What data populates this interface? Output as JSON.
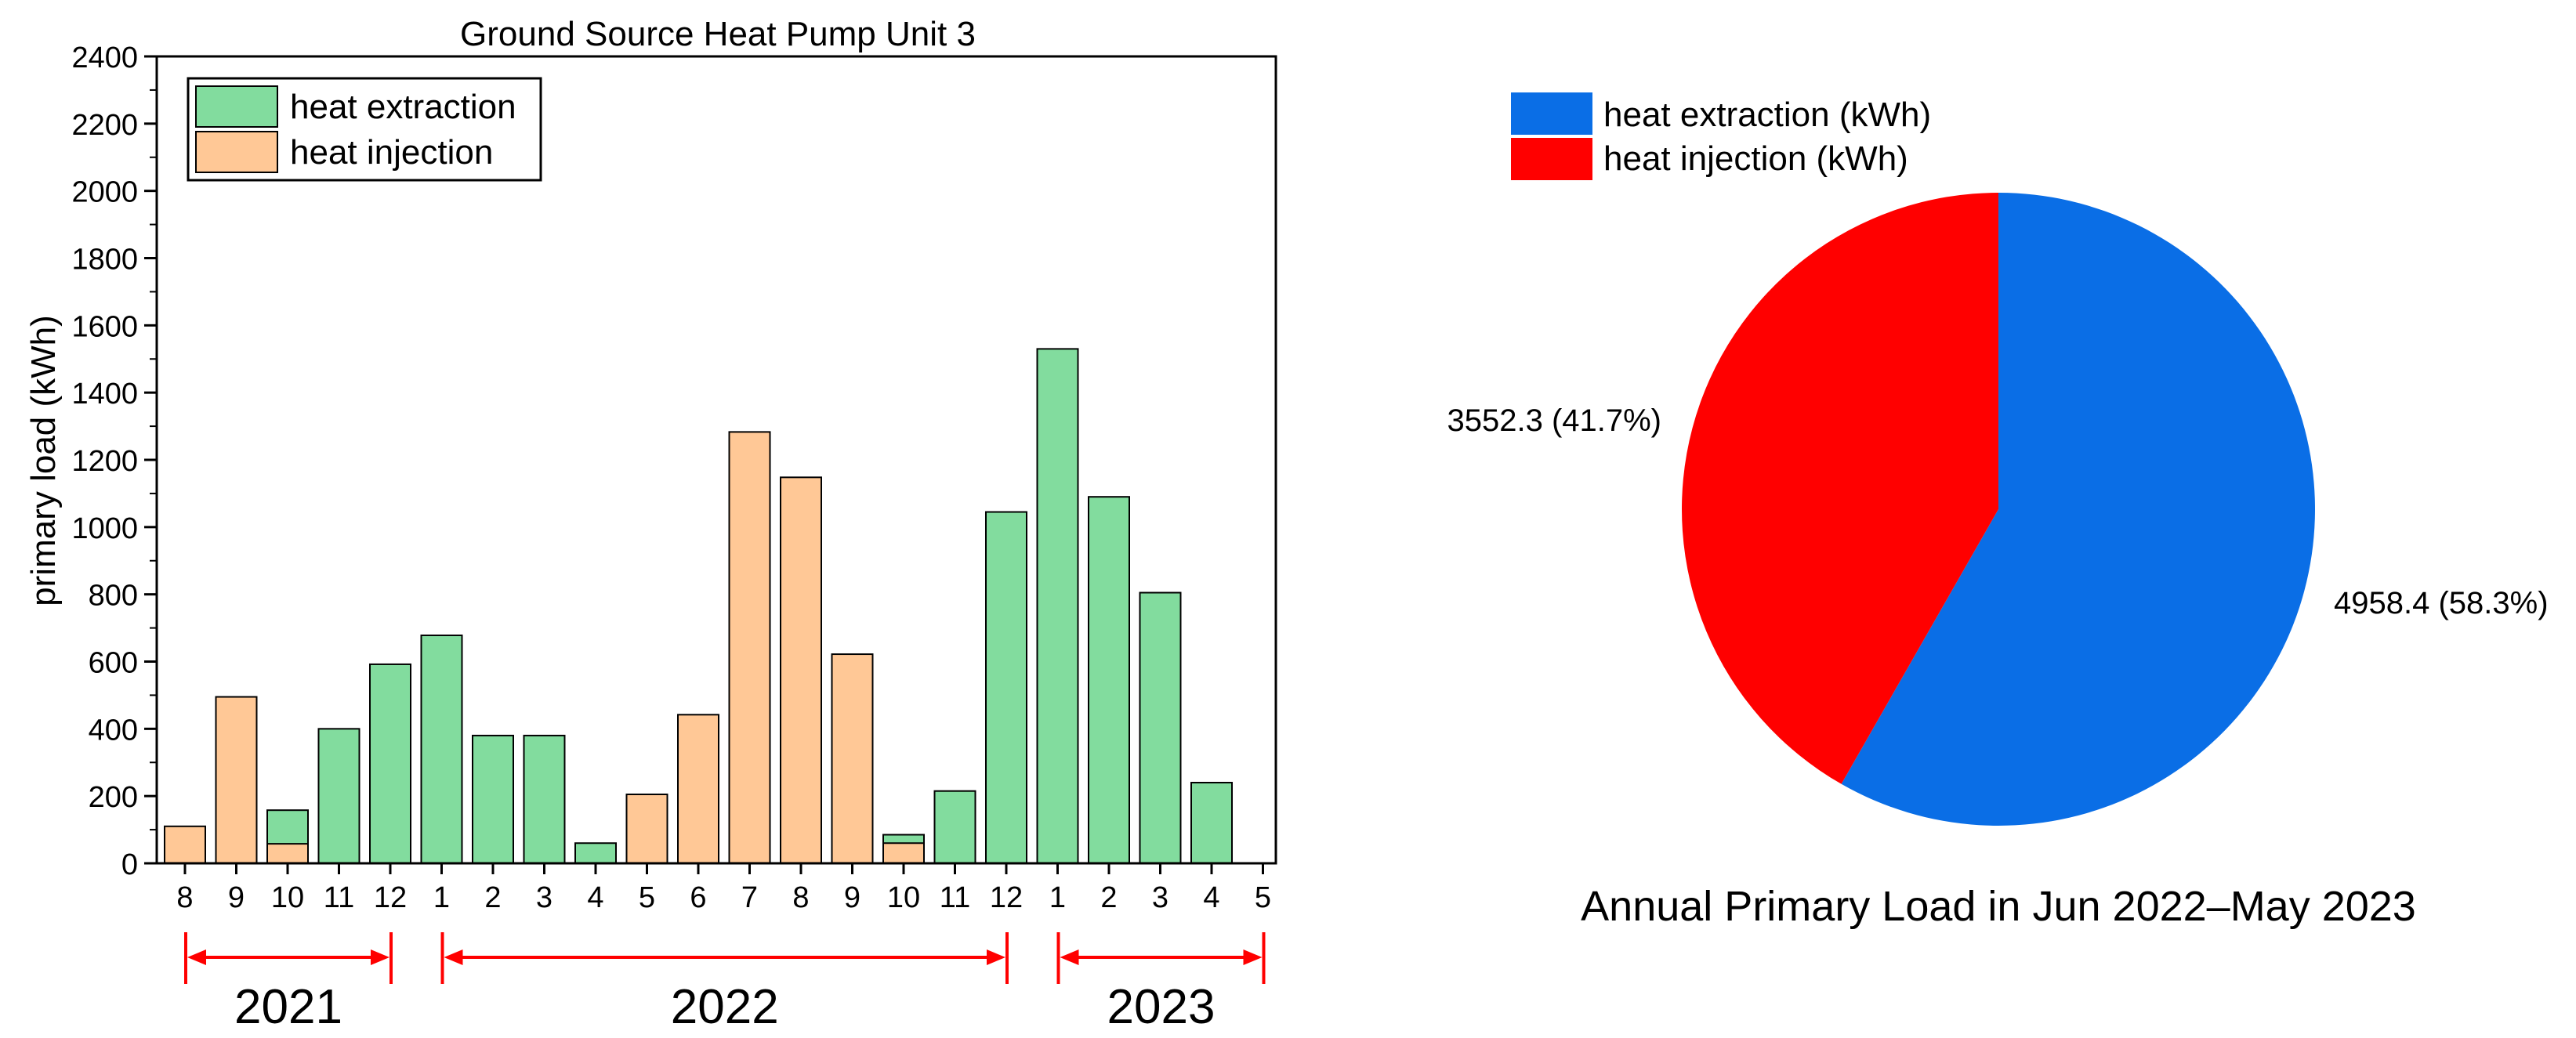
{
  "chart_data": [
    {
      "type": "bar",
      "title": "Ground Source Heat Pump Unit 3",
      "xlabel": "",
      "ylabel": "primary load (kWh)",
      "ylim": [
        0,
        2400
      ],
      "yticks": [
        "0",
        "200",
        "400",
        "600",
        "800",
        "1000",
        "1200",
        "1400",
        "1600",
        "1800",
        "2000",
        "2200",
        "2400"
      ],
      "categories": [
        "8",
        "9",
        "10",
        "11",
        "12",
        "1",
        "2",
        "3",
        "4",
        "5",
        "6",
        "7",
        "8",
        "9",
        "10",
        "11",
        "12",
        "1",
        "2",
        "3",
        "4",
        "5"
      ],
      "series": [
        {
          "name": "heat extraction",
          "color": "#82dc9e",
          "values": [
            0,
            0,
            158,
            400,
            592,
            678,
            380,
            380,
            60,
            0,
            0,
            0,
            0,
            0,
            85,
            215,
            1045,
            1530,
            1090,
            805,
            240,
            0
          ]
        },
        {
          "name": "heat injection",
          "color": "#ffc896",
          "values": [
            110,
            495,
            58,
            0,
            0,
            0,
            0,
            0,
            0,
            205,
            442,
            1283,
            1148,
            622,
            60,
            0,
            0,
            0,
            0,
            0,
            0,
            0
          ]
        }
      ],
      "legend": [
        "heat extraction",
        "heat injection"
      ],
      "legend_position": "top-left",
      "year_spans": [
        {
          "label": "2021",
          "from_index": 0,
          "to_index": 4
        },
        {
          "label": "2022",
          "from_index": 5,
          "to_index": 16
        },
        {
          "label": "2023",
          "from_index": 17,
          "to_index": 21
        }
      ],
      "arrow_color": "#ff0000"
    },
    {
      "type": "pie",
      "title": "Annual Primary Load in Jun 2022–May 2023",
      "slices": [
        {
          "name": "heat extraction (kWh)",
          "value": 4958.4,
          "percent": 58.3,
          "label": "4958.4 (58.3%)",
          "color": "#0a6ee6"
        },
        {
          "name": "heat injection (kWh)",
          "value": 3552.3,
          "percent": 41.7,
          "label": "3552.3 (41.7%)",
          "color": "#ff0000"
        }
      ],
      "legend": [
        "heat extraction (kWh)",
        "heat injection (kWh)"
      ],
      "legend_position": "top-left"
    }
  ]
}
